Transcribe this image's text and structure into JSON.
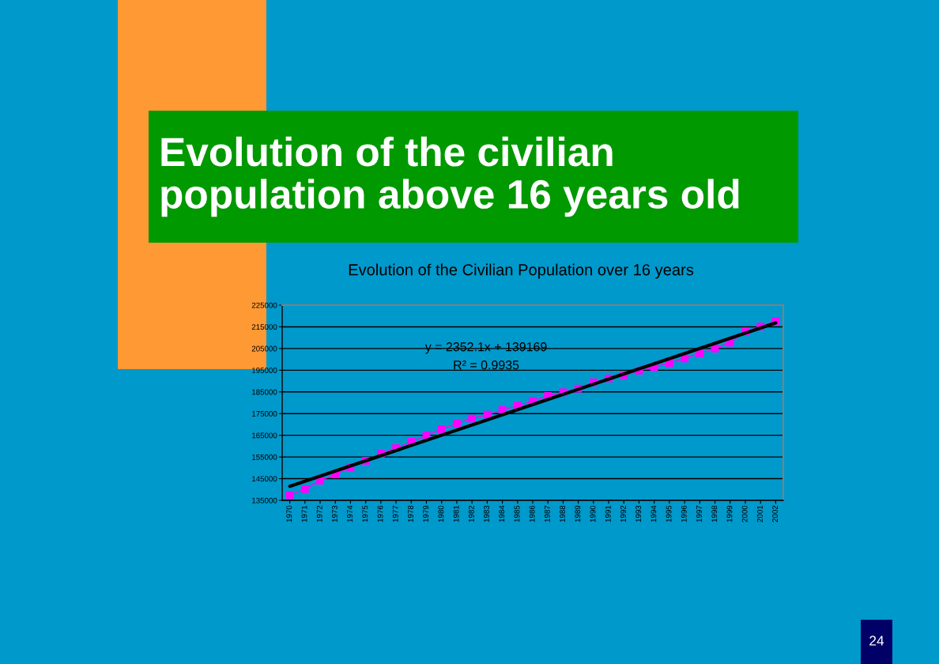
{
  "chart_data": {
    "type": "line",
    "title": "Evolution of the civilian population above 16 years old",
    "subtitle": "Evolution of the Civilian Population over 16 years",
    "annotations": [
      "y = 2352.1x + 139169",
      "R² = 0.9935",
      "24"
    ],
    "x": [
      1970,
      1971,
      1972,
      1973,
      1974,
      1975,
      1976,
      1977,
      1978,
      1979,
      1980,
      1981,
      1982,
      1983,
      1984,
      1985,
      1986,
      1987,
      1988,
      1989,
      1990,
      1991,
      1992,
      1993,
      1994,
      1995,
      1996,
      1997,
      1998,
      1999,
      2000,
      2001,
      2002
    ],
    "xlim": [
      1969.5,
      2002.5
    ],
    "xticks": [
      1970,
      1971,
      1972,
      1973,
      1974,
      1975,
      1976,
      1977,
      1978,
      1979,
      1980,
      1981,
      1982,
      1983,
      1984,
      1985,
      1986,
      1987,
      1988,
      1989,
      1990,
      1991,
      1992,
      1993,
      1994,
      1995,
      1996,
      1997,
      1998,
      1999,
      2000,
      2001,
      2002
    ],
    "ylim": [
      135000,
      225000
    ],
    "yticks": [
      135000,
      145000,
      155000,
      165000,
      175000,
      185000,
      195000,
      205000,
      215000,
      225000
    ],
    "grid": "y",
    "series": [
      {
        "color": "#ff00ff",
        "marker": "square",
        "values": [
          137400,
          140200,
          144100,
          147000,
          150200,
          153200,
          156500,
          159100,
          162000,
          165000,
          167800,
          170400,
          172700,
          174500,
          176700,
          178600,
          180800,
          183200,
          184800,
          186500,
          189400,
          191200,
          192700,
          194800,
          196400,
          198300,
          200400,
          202800,
          205000,
          207700,
          212800,
          215100,
          217700
        ]
      },
      {
        "color": "#000000",
        "marker": "none",
        "x": [
          1970,
          2002
        ],
        "values": [
          141500,
          216800
        ]
      }
    ]
  }
}
